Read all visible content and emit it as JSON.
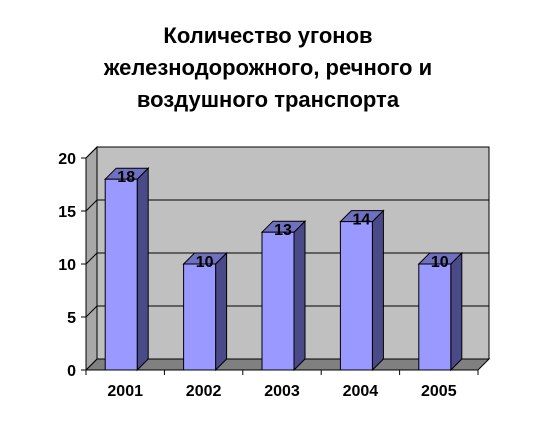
{
  "chart_data": {
    "type": "bar",
    "title_lines": [
      "Количество угонов",
      "железнодорожного, речного и",
      "воздушного транспорта"
    ],
    "categories": [
      "2001",
      "2002",
      "2003",
      "2004",
      "2005"
    ],
    "values": [
      18,
      10,
      13,
      14,
      10
    ],
    "data_labels": [
      "18",
      "10",
      "13",
      "14",
      "10"
    ],
    "yticks": [
      "0",
      "5",
      "10",
      "15",
      "20"
    ],
    "ylim": [
      0,
      20
    ],
    "grid": true,
    "legend": "none",
    "style": "3d-column",
    "colors": {
      "bar_front": "#9999ff",
      "bar_side": "#4a4a88",
      "bar_top": "#7070c0",
      "wall": "#c0c0c0",
      "floor": "#808080",
      "gridline": "#000000"
    }
  }
}
